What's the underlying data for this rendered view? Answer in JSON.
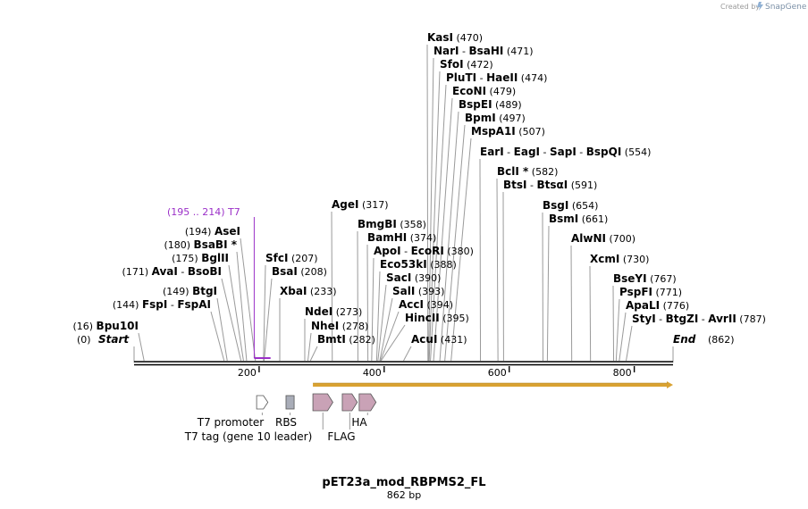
{
  "credit": {
    "prefix": "Created by",
    "brand": "SnapGene"
  },
  "map": {
    "name": "pET23a_mod_RBPMS2_FL",
    "length_label": "862 bp",
    "length_bp": 862,
    "start_label": "Start",
    "start_pos": "(0)",
    "end_label": "End",
    "end_pos": "(862)",
    "ticks": [
      "200",
      "400",
      "600",
      "800"
    ],
    "primer_site": {
      "label": "(195 .. 214)  T7",
      "from": 195,
      "to": 214,
      "color": "#9b30c8"
    },
    "orf": {
      "from": 286,
      "to": 862,
      "color": "#d9a232"
    }
  },
  "enzymes": [
    {
      "names": [
        "Bpu10I"
      ],
      "pos": "(16)",
      "site": 16
    },
    {
      "names": [
        "FspI",
        "FspAI"
      ],
      "pos": "(144)",
      "site": 144
    },
    {
      "names": [
        "BtgI"
      ],
      "pos": "(149)",
      "site": 149
    },
    {
      "names": [
        "AvaI",
        "BsoBI"
      ],
      "pos": "(171)",
      "site": 171
    },
    {
      "names": [
        "BglII"
      ],
      "pos": "(175)",
      "site": 175
    },
    {
      "names": [
        "BsaBI *"
      ],
      "pos": "(180)",
      "site": 180
    },
    {
      "names": [
        "AseI"
      ],
      "pos": "(194)",
      "site": 194
    },
    {
      "names": [
        "SfcI"
      ],
      "pos": "(207)",
      "site": 207
    },
    {
      "names": [
        "BsaI"
      ],
      "pos": "(208)",
      "site": 208
    },
    {
      "names": [
        "XbaI"
      ],
      "pos": "(233)",
      "site": 233
    },
    {
      "names": [
        "NdeI"
      ],
      "pos": "(273)",
      "site": 273
    },
    {
      "names": [
        "NheI"
      ],
      "pos": "(278)",
      "site": 278
    },
    {
      "names": [
        "BmtI"
      ],
      "pos": "(282)",
      "site": 282
    },
    {
      "names": [
        "AgeI"
      ],
      "pos": "(317)",
      "site": 317
    },
    {
      "names": [
        "BmgBI"
      ],
      "pos": "(358)",
      "site": 358
    },
    {
      "names": [
        "BamHI"
      ],
      "pos": "(374)",
      "site": 374
    },
    {
      "names": [
        "ApoI",
        "EcoRI"
      ],
      "pos": "(380)",
      "site": 380
    },
    {
      "names": [
        "Eco53kI"
      ],
      "pos": "(388)",
      "site": 388
    },
    {
      "names": [
        "SacI"
      ],
      "pos": "(390)",
      "site": 390
    },
    {
      "names": [
        "SalI"
      ],
      "pos": "(393)",
      "site": 393
    },
    {
      "names": [
        "AccI"
      ],
      "pos": "(394)",
      "site": 394
    },
    {
      "names": [
        "HincII"
      ],
      "pos": "(395)",
      "site": 395
    },
    {
      "names": [
        "AcuI"
      ],
      "pos": "(431)",
      "site": 431
    },
    {
      "names": [
        "KasI"
      ],
      "pos": "(470)",
      "site": 470
    },
    {
      "names": [
        "NarI",
        "BsaHI"
      ],
      "pos": "(471)",
      "site": 471
    },
    {
      "names": [
        "SfoI"
      ],
      "pos": "(472)",
      "site": 472
    },
    {
      "names": [
        "PluTI",
        "HaeII"
      ],
      "pos": "(474)",
      "site": 474
    },
    {
      "names": [
        "EcoNI"
      ],
      "pos": "(479)",
      "site": 479
    },
    {
      "names": [
        "BspEI"
      ],
      "pos": "(489)",
      "site": 489
    },
    {
      "names": [
        "BpmI"
      ],
      "pos": "(497)",
      "site": 497
    },
    {
      "names": [
        "MspA1I"
      ],
      "pos": "(507)",
      "site": 507
    },
    {
      "names": [
        "EarI",
        "EagI",
        "SapI",
        "BspQI"
      ],
      "pos": "(554)",
      "site": 554
    },
    {
      "names": [
        "BclI *"
      ],
      "pos": "(582)",
      "site": 582
    },
    {
      "names": [
        "BtsI",
        "BtsαI"
      ],
      "pos": "(591)",
      "site": 591
    },
    {
      "names": [
        "BsgI"
      ],
      "pos": "(654)",
      "site": 654
    },
    {
      "names": [
        "BsmI"
      ],
      "pos": "(661)",
      "site": 661
    },
    {
      "names": [
        "AlwNI"
      ],
      "pos": "(700)",
      "site": 700
    },
    {
      "names": [
        "XcmI"
      ],
      "pos": "(730)",
      "site": 730
    },
    {
      "names": [
        "BseYI"
      ],
      "pos": "(767)",
      "site": 767
    },
    {
      "names": [
        "PspFI"
      ],
      "pos": "(771)",
      "site": 771
    },
    {
      "names": [
        "ApaLI"
      ],
      "pos": "(776)",
      "site": 776
    },
    {
      "names": [
        "StyI",
        "BtgZI",
        "AvrII"
      ],
      "pos": "(787)",
      "site": 787
    }
  ],
  "features": [
    {
      "label": "T7 promoter",
      "from": 196,
      "to": 214,
      "type": "promoter",
      "color": "#ffffff"
    },
    {
      "label": "RBS",
      "from": 243,
      "to": 256,
      "type": "rbs",
      "color": "#a9adb8"
    },
    {
      "label": "T7 tag (gene 10 leader)",
      "from": 286,
      "to": 318,
      "type": "cds",
      "color": "#c9a2b6"
    },
    {
      "label": "FLAG",
      "from": 333,
      "to": 357,
      "type": "cds",
      "color": "#c9a2b6"
    },
    {
      "label": "HA",
      "from": 360,
      "to": 387,
      "type": "cds",
      "color": "#c9a2b6"
    }
  ]
}
